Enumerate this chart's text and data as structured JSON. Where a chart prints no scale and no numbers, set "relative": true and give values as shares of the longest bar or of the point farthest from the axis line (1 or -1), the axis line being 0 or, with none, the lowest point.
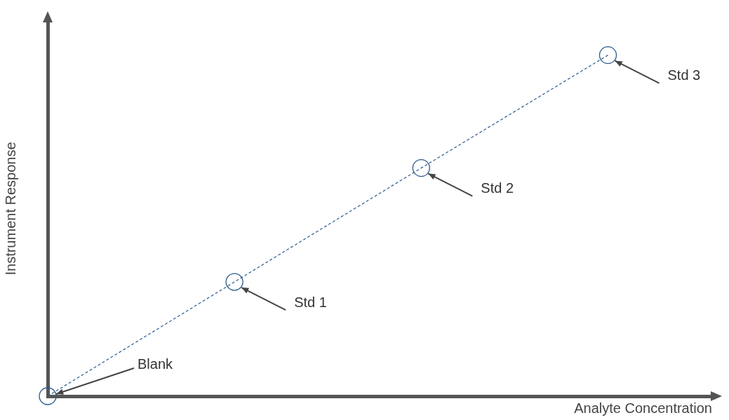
{
  "chart_data": {
    "type": "line",
    "relative": true,
    "xlabel": "Analyte Concentration",
    "ylabel": "Instrument Response",
    "categories": [
      null,
      null,
      null,
      null
    ],
    "series": [
      {
        "color": "#2a5a8c",
        "values": [
          0,
          0.335,
          0.669,
          1
        ]
      }
    ],
    "marker": "circle",
    "line_style": "dashed",
    "grid": false,
    "legend": false,
    "annotations": [
      "Blank",
      "Std 1",
      "Std 2",
      "Std 3"
    ]
  }
}
